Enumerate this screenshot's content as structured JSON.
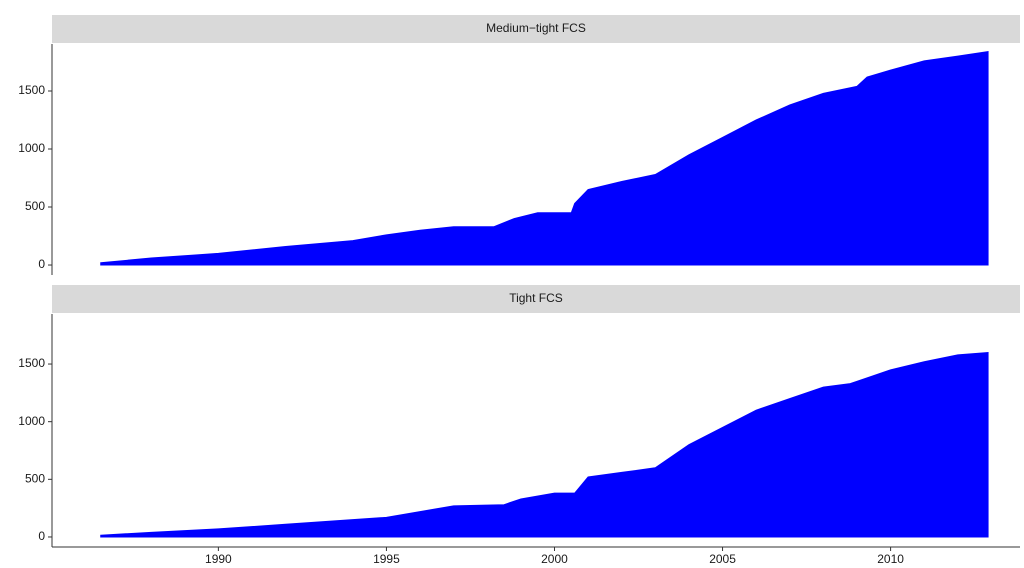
{
  "chart_data": [
    {
      "type": "area",
      "title": "Medium−tight FCS",
      "color": "#0000ff",
      "x": [
        1986.5,
        1988,
        1990,
        1992,
        1994,
        1995,
        1996,
        1997,
        1998.2,
        1998.8,
        1999.5,
        2000.5,
        2000.6,
        2001,
        2002,
        2003,
        2004,
        2005,
        2006,
        2007,
        2008,
        2009,
        2009.3,
        2010,
        2011,
        2012,
        2012.9
      ],
      "values": [
        20,
        60,
        100,
        160,
        210,
        260,
        300,
        330,
        330,
        400,
        450,
        450,
        530,
        650,
        720,
        780,
        950,
        1100,
        1250,
        1380,
        1480,
        1540,
        1620,
        1680,
        1760,
        1800,
        1840
      ],
      "xlim": [
        1985.05,
        2013.85
      ],
      "ylim": [
        -86,
        1905
      ],
      "yticks": [
        0,
        500,
        1000,
        1500
      ]
    },
    {
      "type": "area",
      "title": "Tight FCS",
      "color": "#0000ff",
      "x": [
        1986.5,
        1988,
        1990,
        1992,
        1994,
        1995,
        1996,
        1997,
        1998.5,
        1999,
        2000,
        2000.6,
        2001,
        2002,
        2003,
        2004,
        2005,
        2006,
        2007,
        2008,
        2008.8,
        2009.5,
        2010,
        2011,
        2012,
        2012.9
      ],
      "values": [
        15,
        40,
        70,
        110,
        150,
        170,
        220,
        270,
        280,
        330,
        380,
        380,
        520,
        560,
        600,
        800,
        950,
        1100,
        1200,
        1300,
        1330,
        1400,
        1450,
        1520,
        1580,
        1600
      ],
      "xlim": [
        1985.05,
        2013.85
      ],
      "ylim": [
        -87,
        1934
      ],
      "yticks": [
        0,
        500,
        1000,
        1500
      ],
      "xticks": [
        1990,
        1995,
        2000,
        2005,
        2010
      ]
    }
  ]
}
